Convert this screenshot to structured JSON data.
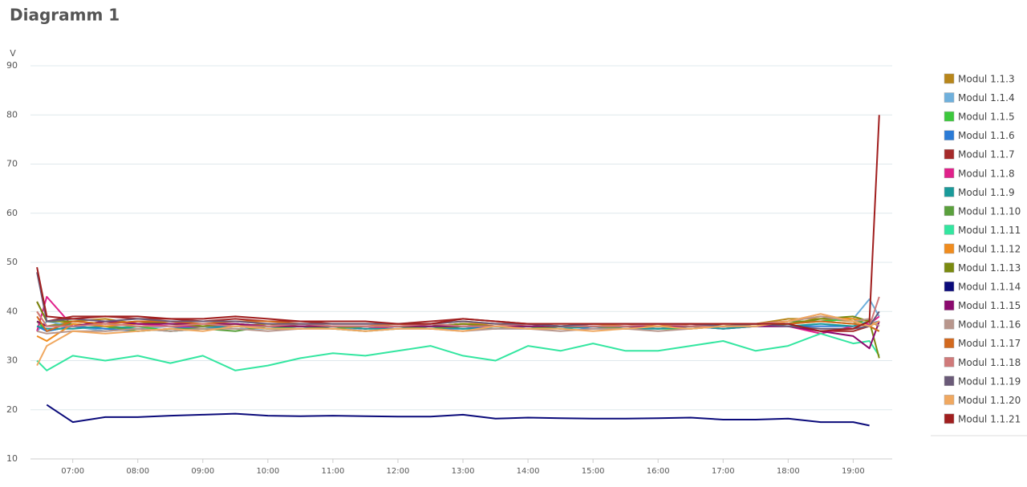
{
  "chart_data": {
    "type": "line",
    "title": "Diagramm 1",
    "y_label": "V",
    "xlim": [
      6.35,
      19.6
    ],
    "ylim": [
      10,
      90
    ],
    "yticks": [
      10,
      20,
      30,
      40,
      50,
      60,
      70,
      80,
      90
    ],
    "xticks": [
      {
        "value": 7,
        "label": "07:00"
      },
      {
        "value": 8,
        "label": "08:00"
      },
      {
        "value": 9,
        "label": "09:00"
      },
      {
        "value": 10,
        "label": "10:00"
      },
      {
        "value": 11,
        "label": "11:00"
      },
      {
        "value": 12,
        "label": "12:00"
      },
      {
        "value": 13,
        "label": "13:00"
      },
      {
        "value": 14,
        "label": "14:00"
      },
      {
        "value": 15,
        "label": "15:00"
      },
      {
        "value": 16,
        "label": "16:00"
      },
      {
        "value": 17,
        "label": "17:00"
      },
      {
        "value": 18,
        "label": "18:00"
      },
      {
        "value": 19,
        "label": "19:00"
      }
    ],
    "grid": true,
    "x": [
      6.45,
      6.6,
      7.0,
      7.5,
      8.0,
      8.5,
      9.0,
      9.5,
      10.0,
      10.5,
      11.0,
      11.5,
      12.0,
      12.5,
      13.0,
      13.5,
      14.0,
      14.5,
      15.0,
      15.5,
      16.0,
      16.5,
      17.0,
      17.5,
      18.0,
      18.5,
      19.0,
      19.25,
      19.4
    ],
    "series": [
      {
        "name": "Modul 1.1.3",
        "color": "#b8861a",
        "values": [
          40,
          37,
          38,
          38.5,
          37.5,
          37,
          36.5,
          37,
          37.5,
          37,
          37,
          36.5,
          37,
          37,
          37.5,
          37,
          37,
          36.5,
          37,
          37,
          36.5,
          37,
          37,
          37.5,
          38.5,
          38.5,
          38,
          37,
          38
        ]
      },
      {
        "name": "Modul 1.1.4",
        "color": "#6fb0dc",
        "values": [
          36,
          38,
          37,
          36,
          36.5,
          37,
          37,
          36.5,
          36.5,
          37,
          36.5,
          36.5,
          37,
          36.5,
          37,
          36.5,
          36.5,
          37,
          36.5,
          36.5,
          37,
          36.5,
          37,
          37,
          38,
          38,
          38.5,
          42.5,
          39
        ]
      },
      {
        "name": "Modul 1.1.5",
        "color": "#3cc83c",
        "values": [
          38,
          36,
          37,
          36.5,
          37,
          36,
          36.5,
          37,
          36.5,
          37,
          36.5,
          36,
          36.5,
          37,
          36.5,
          37,
          37,
          36.5,
          37,
          37,
          36.5,
          36.5,
          37,
          37,
          37.5,
          38,
          38.5,
          37,
          36
        ]
      },
      {
        "name": "Modul 1.1.6",
        "color": "#2b7bd6",
        "values": [
          37,
          36,
          37,
          36.5,
          36,
          36.5,
          37,
          37,
          36.5,
          36.5,
          37,
          36.5,
          37,
          36.5,
          36.5,
          37,
          36.5,
          37,
          36.5,
          37,
          36.5,
          37,
          36.5,
          37,
          37,
          37,
          37,
          37.5,
          38
        ]
      },
      {
        "name": "Modul 1.1.7",
        "color": "#a52a2a",
        "values": [
          42,
          38,
          39,
          39,
          38.5,
          38.5,
          38,
          38.5,
          38,
          38,
          37.5,
          37.5,
          37.5,
          38,
          38.5,
          38,
          37.5,
          37,
          37.5,
          37.5,
          37.5,
          37,
          37.5,
          37.5,
          37,
          36,
          36,
          37,
          38
        ]
      },
      {
        "name": "Modul 1.1.8",
        "color": "#e0218a",
        "values": [
          36,
          43,
          37,
          38,
          37.5,
          37,
          37,
          37.5,
          37,
          37,
          37,
          36.5,
          37,
          37,
          37.5,
          37,
          37,
          37,
          37,
          37,
          37,
          37,
          36.5,
          37,
          37,
          35.5,
          37,
          37.5,
          39
        ]
      },
      {
        "name": "Modul 1.1.9",
        "color": "#1a9a9a",
        "values": [
          37,
          36.5,
          36.5,
          37,
          36.5,
          36,
          36.5,
          37,
          36.5,
          36.5,
          37,
          36.5,
          36.5,
          37,
          36.5,
          36.5,
          37,
          36.5,
          37,
          36.5,
          36.5,
          37,
          36.5,
          37,
          37,
          37.5,
          37,
          38,
          37
        ]
      },
      {
        "name": "Modul 1.1.10",
        "color": "#5aa03c",
        "values": [
          38,
          37,
          37.5,
          37,
          36,
          36.5,
          36.5,
          36,
          37,
          37,
          36.5,
          37,
          37,
          36.5,
          37,
          37,
          36.5,
          37,
          37,
          36.5,
          37,
          37,
          37,
          37.5,
          38,
          38,
          37.5,
          38.5,
          37
        ]
      },
      {
        "name": "Modul 1.1.11",
        "color": "#33e6a0",
        "values": [
          30,
          28,
          31,
          30,
          31,
          29.5,
          31,
          28,
          29,
          30.5,
          31.5,
          31,
          32,
          33,
          31,
          30,
          33,
          32,
          33.5,
          32,
          32,
          33,
          34,
          32,
          33,
          35.5,
          33.5,
          34,
          31
        ]
      },
      {
        "name": "Modul 1.1.12",
        "color": "#f08c1e",
        "values": [
          35,
          34,
          37.5,
          37,
          37.5,
          38,
          37,
          37.5,
          37,
          37.5,
          37,
          37,
          37.5,
          37,
          37.5,
          37.5,
          37,
          37,
          37.5,
          37,
          37,
          37.5,
          37,
          37.5,
          38,
          39,
          38.5,
          38,
          37
        ]
      },
      {
        "name": "Modul 1.1.13",
        "color": "#7a8a10",
        "values": [
          42,
          38,
          38,
          37.5,
          38,
          37.5,
          37,
          37.5,
          37,
          37,
          37,
          37,
          37,
          37,
          37.5,
          37,
          37,
          37,
          37,
          37,
          37,
          37,
          37,
          37,
          37.5,
          38.5,
          39,
          38,
          30.5
        ]
      },
      {
        "name": "Modul 1.1.14",
        "color": "#0a0a7a",
        "values": [
          null,
          21,
          17.5,
          18.5,
          18.5,
          18.8,
          19,
          19.2,
          18.8,
          18.7,
          18.8,
          18.7,
          18.6,
          18.6,
          19,
          18.2,
          18.4,
          18.3,
          18.2,
          18.2,
          18.3,
          18.4,
          18,
          18,
          18.2,
          17.5,
          17.5,
          16.8,
          null
        ]
      },
      {
        "name": "Modul 1.1.15",
        "color": "#8b0a6e",
        "values": [
          38,
          37,
          37,
          38,
          37.5,
          37.5,
          37.5,
          37.5,
          37,
          37,
          37,
          37,
          37,
          37,
          37,
          37,
          37,
          37,
          37,
          37,
          37,
          37,
          37,
          37,
          37,
          36,
          35,
          32.5,
          38
        ]
      },
      {
        "name": "Modul 1.1.16",
        "color": "#b8968c",
        "values": [
          36,
          35.5,
          36,
          36,
          36.5,
          36,
          36.5,
          36.5,
          36,
          36.5,
          36.5,
          36,
          36.5,
          36.5,
          36,
          36.5,
          36.5,
          36,
          36.5,
          36.5,
          36,
          36.5,
          37,
          37,
          38,
          39,
          38,
          38.5,
          37
        ]
      },
      {
        "name": "Modul 1.1.17",
        "color": "#d2691e",
        "values": [
          39,
          36,
          38,
          37.5,
          38,
          38,
          37.5,
          38,
          38,
          37.5,
          37.5,
          37.5,
          37.5,
          37.5,
          38,
          37.5,
          37.5,
          37.5,
          37.5,
          37.5,
          37,
          37.5,
          37.5,
          37.5,
          37.5,
          38,
          37.5,
          37,
          36
        ]
      },
      {
        "name": "Modul 1.1.18",
        "color": "#d07a7a",
        "values": [
          40,
          37,
          37,
          37.5,
          37,
          37,
          37.5,
          37,
          37,
          37.5,
          37,
          37,
          37,
          37.5,
          37,
          37,
          37.5,
          37,
          37,
          37,
          37.5,
          37,
          37,
          37.5,
          38,
          39.5,
          38,
          37,
          43
        ]
      },
      {
        "name": "Modul 1.1.19",
        "color": "#6a5a78",
        "values": [
          48,
          38,
          38.5,
          38,
          38.5,
          38,
          38,
          38,
          37.5,
          37.5,
          37.5,
          37.5,
          37.5,
          37.5,
          38,
          37.5,
          37.5,
          37,
          37.5,
          37.5,
          37.5,
          37.5,
          37,
          37.5,
          37,
          36.5,
          36.5,
          37,
          40
        ]
      },
      {
        "name": "Modul 1.1.20",
        "color": "#f0a860",
        "values": [
          29,
          33,
          36,
          35.5,
          36,
          36.5,
          36,
          37,
          36.5,
          36.5,
          36.5,
          36,
          36.5,
          36.5,
          36,
          37,
          36.5,
          36.5,
          36,
          36.5,
          37,
          36.5,
          37,
          37,
          38,
          39.5,
          38,
          37,
          38
        ]
      },
      {
        "name": "Modul 1.1.21",
        "color": "#a01e1e",
        "values": [
          49,
          39,
          38.5,
          39,
          39,
          38.5,
          38.5,
          39,
          38.5,
          38,
          38,
          38,
          37.5,
          37.5,
          38.5,
          38,
          37.5,
          37.5,
          37.5,
          37.5,
          37.5,
          37.5,
          37.5,
          37.5,
          37.5,
          36,
          36.5,
          38,
          80
        ]
      }
    ]
  }
}
